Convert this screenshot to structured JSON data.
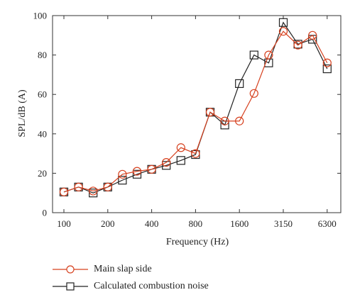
{
  "chart_data": {
    "type": "line",
    "title": "",
    "xlabel": "Frequency (Hz)",
    "ylabel": "SPL/dB (A)",
    "ylim": [
      0,
      100
    ],
    "yticks": [
      0,
      20,
      40,
      60,
      80,
      100
    ],
    "x_bands": [
      "100",
      "125",
      "160",
      "200",
      "250",
      "315",
      "400",
      "500",
      "630",
      "800",
      "1000",
      "1250",
      "1600",
      "2000",
      "2500",
      "3150",
      "4000",
      "5000",
      "6300"
    ],
    "xtick_labels": [
      "100",
      "200",
      "400",
      "800",
      "1600",
      "3150",
      "6300"
    ],
    "grid": false,
    "legend_position": "bottom-left",
    "series": [
      {
        "name": "Main slap side",
        "color": "#d6401e",
        "marker": "circle",
        "values": [
          10.5,
          13,
          11,
          13,
          19.5,
          21,
          22,
          25.5,
          33,
          30,
          51,
          46.5,
          46.5,
          60.5,
          80,
          92,
          85,
          90,
          76
        ]
      },
      {
        "name": "Calculated combustion noise",
        "color": "#222222",
        "marker": "square",
        "values": [
          10.5,
          13,
          10,
          13,
          16.5,
          19.5,
          22,
          24,
          26.5,
          29.5,
          51,
          44.5,
          65.5,
          80,
          76,
          96.5,
          85.5,
          88,
          73
        ]
      }
    ]
  }
}
